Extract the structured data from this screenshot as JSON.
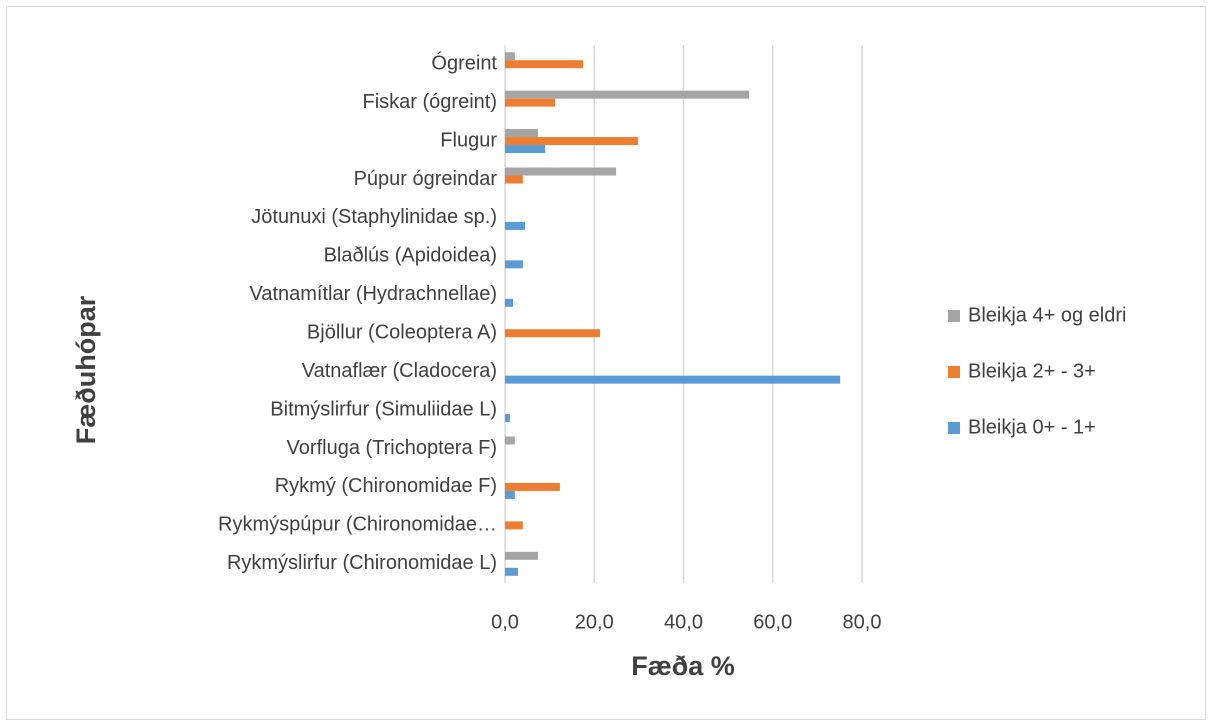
{
  "chart_data": {
    "type": "barh",
    "x_label": "Fæða %",
    "y_label": "Fæðuhópar",
    "categories": [
      "Ógreint",
      "Fiskar (ógreint)",
      "Flugur",
      "Púpur ógreindar",
      "Jötunuxi (Staphylinidae sp.)",
      "Blaðlús (Apidoidea)",
      "Vatnamítlar (Hydrachnellae)",
      "Bjöllur (Coleoptera A)",
      "Vatnaflær (Cladocera)",
      "Bitmýslirfur (Simuliidae L)",
      "Vorfluga (Trichoptera F)",
      "Rykmý (Chironomidae F)",
      "Rykmýspúpur (Chironomidae…",
      "Rykmýslirfur (Chironomidae L)"
    ],
    "series": [
      {
        "name": "Bleikja 4+ og eldri",
        "color": "#a5a5a5",
        "values": [
          2.2,
          54.7,
          7.4,
          24.9,
          0,
          0,
          0,
          0,
          0,
          0,
          2.2,
          0,
          0,
          7.4
        ]
      },
      {
        "name": "Bleikja 2+ - 3+",
        "color": "#ed7d31",
        "values": [
          17.5,
          11.2,
          29.8,
          4,
          0,
          0,
          0,
          21.3,
          0,
          0,
          0,
          12.3,
          4,
          0
        ]
      },
      {
        "name": "Bleikja 0+ - 1+",
        "color": "#5b9bd5",
        "values": [
          0,
          0,
          9,
          0,
          4.5,
          4,
          1.8,
          0,
          75.1,
          1.1,
          0,
          2.2,
          0,
          2.9
        ]
      }
    ],
    "xlim": [
      0,
      80
    ],
    "xticks": [
      {
        "value": 0,
        "label": "0,0"
      },
      {
        "value": 20,
        "label": "20,0"
      },
      {
        "value": 40,
        "label": "40,0"
      },
      {
        "value": 60,
        "label": "60,0"
      },
      {
        "value": 80,
        "label": "80,0"
      }
    ],
    "grid": true,
    "legend": "right"
  }
}
